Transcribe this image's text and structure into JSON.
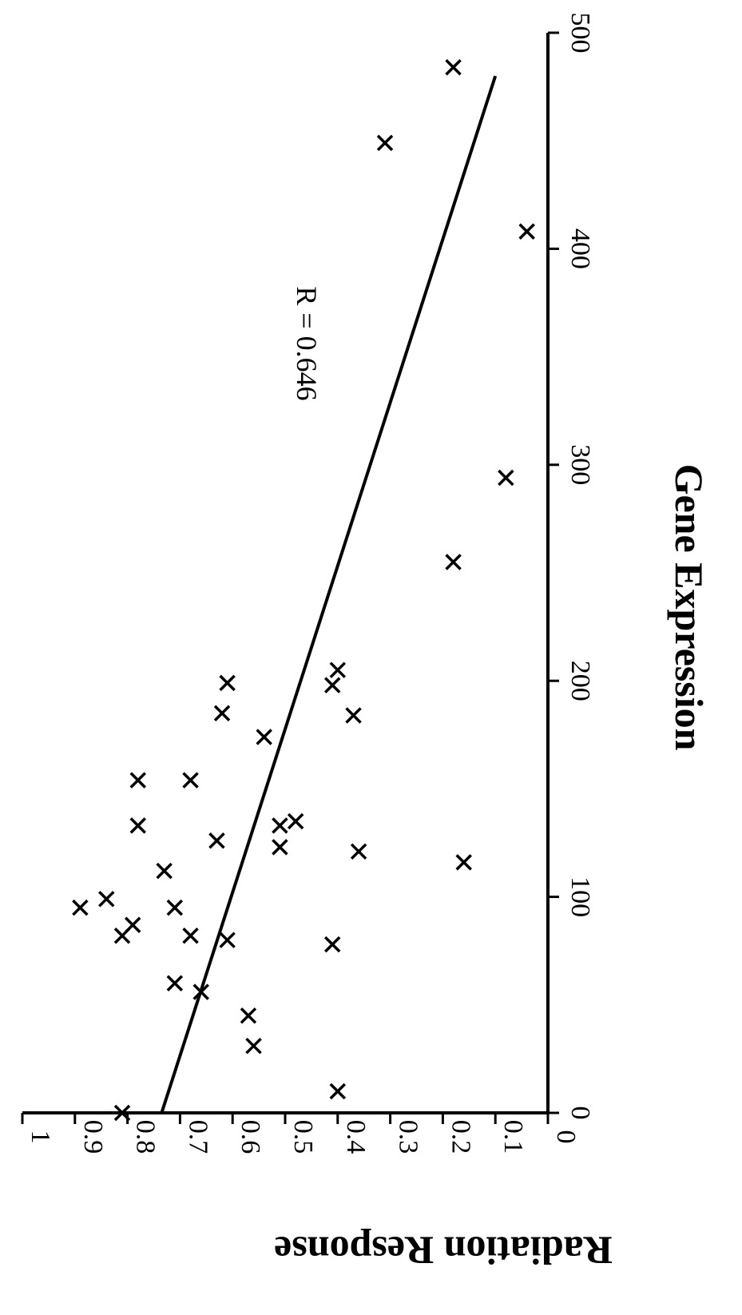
{
  "chart_data": {
    "type": "scatter",
    "orientation": "rotated-90-clockwise",
    "title": "",
    "xlabel": "Gene Expression",
    "ylabel": "Radiation Response",
    "xlim": [
      0,
      500
    ],
    "ylim": [
      0,
      1
    ],
    "x_ticks": [
      "0",
      "100",
      "200",
      "300",
      "400",
      "500"
    ],
    "y_ticks": [
      "0",
      "0.1",
      "0.2",
      "0.3",
      "0.4",
      "0.5",
      "0.6",
      "0.7",
      "0.8",
      "0.9",
      "1"
    ],
    "marker": "x",
    "grid": false,
    "legend": "none",
    "annotation": "R = 0.646",
    "trendline": {
      "x": [
        0,
        480
      ],
      "y": [
        0.735,
        0.1
      ]
    },
    "points": [
      {
        "x": 0,
        "y": 0.81
      },
      {
        "x": 10,
        "y": 0.4
      },
      {
        "x": 31,
        "y": 0.56
      },
      {
        "x": 45,
        "y": 0.57
      },
      {
        "x": 56,
        "y": 0.66
      },
      {
        "x": 60,
        "y": 0.71
      },
      {
        "x": 78,
        "y": 0.41
      },
      {
        "x": 80,
        "y": 0.61
      },
      {
        "x": 82,
        "y": 0.68
      },
      {
        "x": 82,
        "y": 0.81
      },
      {
        "x": 87,
        "y": 0.79
      },
      {
        "x": 95,
        "y": 0.89
      },
      {
        "x": 95,
        "y": 0.71
      },
      {
        "x": 99,
        "y": 0.84
      },
      {
        "x": 112,
        "y": 0.73
      },
      {
        "x": 116,
        "y": 0.16
      },
      {
        "x": 121,
        "y": 0.36
      },
      {
        "x": 123,
        "y": 0.51
      },
      {
        "x": 126,
        "y": 0.63
      },
      {
        "x": 133,
        "y": 0.51
      },
      {
        "x": 133,
        "y": 0.78
      },
      {
        "x": 135,
        "y": 0.48
      },
      {
        "x": 154,
        "y": 0.78
      },
      {
        "x": 154,
        "y": 0.68
      },
      {
        "x": 174,
        "y": 0.54
      },
      {
        "x": 184,
        "y": 0.37
      },
      {
        "x": 185,
        "y": 0.62
      },
      {
        "x": 198,
        "y": 0.41
      },
      {
        "x": 199,
        "y": 0.61
      },
      {
        "x": 205,
        "y": 0.4
      },
      {
        "x": 255,
        "y": 0.18
      },
      {
        "x": 294,
        "y": 0.08
      },
      {
        "x": 408,
        "y": 0.04
      },
      {
        "x": 449,
        "y": 0.31
      },
      {
        "x": 484,
        "y": 0.18
      }
    ]
  }
}
